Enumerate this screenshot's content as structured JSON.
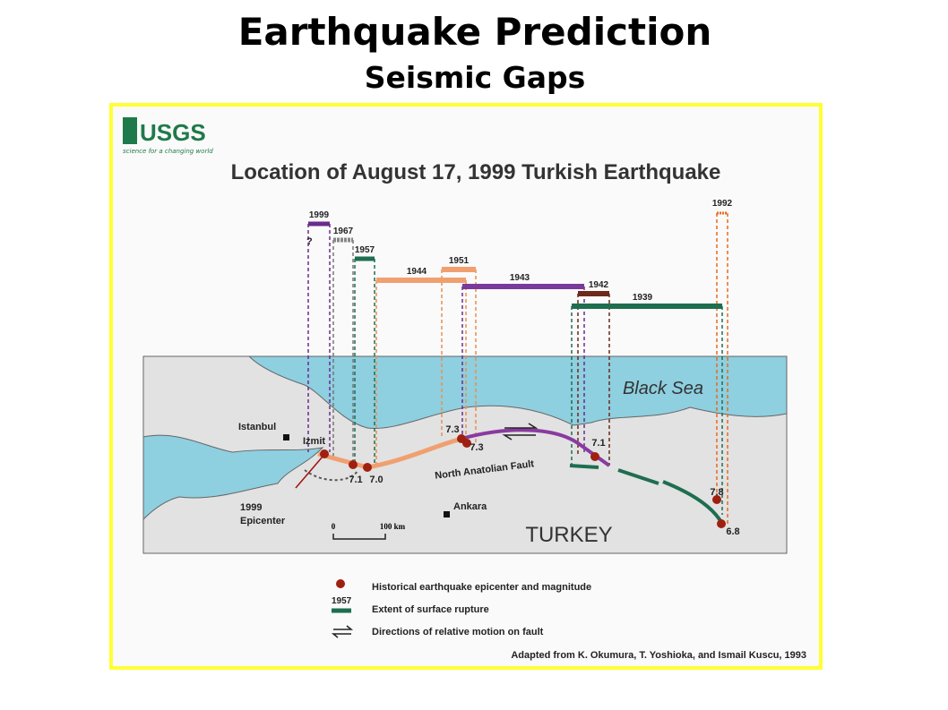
{
  "header": {
    "title": "Earthquake Prediction",
    "subtitle": "Seismic Gaps"
  },
  "figure": {
    "logo": "USGS",
    "tagline": "science for a changing world",
    "title": "Location of August 17, 1999 Turkish Earthquake",
    "ruptures": [
      "1999",
      "1967",
      "1957",
      "1944",
      "1951",
      "1943",
      "1942",
      "1939",
      "1992"
    ],
    "unknown": "?",
    "magnitudes": [
      "7.1",
      "7.0",
      "7.3",
      "7.3",
      "7.1",
      "7.8",
      "6.8"
    ],
    "places": {
      "istanbul": "Istanbul",
      "izmit": "Izmit",
      "epicenter_1": "1999",
      "epicenter_2": "Epicenter",
      "ankara": "Ankara",
      "country": "TURKEY",
      "sea": "Black Sea"
    },
    "fault": "North Anatolian Fault",
    "scale": {
      "zero": "0",
      "length": "100 km"
    },
    "legend": {
      "sample_year": "1957",
      "items": [
        "Historical earthquake epicenter and magnitude",
        "Extent of surface rupture",
        "Directions of relative motion on fault"
      ]
    },
    "credit": "Adapted from K. Okumura, T. Yoshioka, and Ismail Kuscu, 1993"
  }
}
